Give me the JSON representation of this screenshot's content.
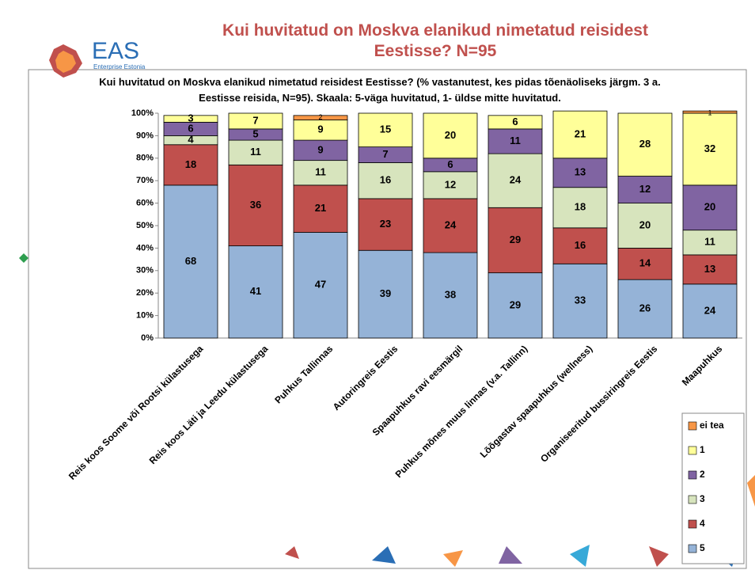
{
  "slide": {
    "title": "Kui huvitatud on Moskva elanikud nimetatud reisidest Eestisse? N=95",
    "logo": "EAS",
    "logo_sub": "Enterprise Estonia"
  },
  "chart_data": {
    "type": "stacked_bar",
    "title": "Kui huvitatud on Moskva elanikud nimetatud reisidest Eestisse? (% vastanutest, kes pidas tõenäoliseks järgm. 3 a. Eestisse reisida, N=95). Skaala: 5-väga huvitatud, 1- üldse mitte huvitatud.",
    "categories": [
      "Reis koos Soome või Rootsi külastusega",
      "Reis koos Läti ja Leedu külastusega",
      "Puhkus Tallinnas",
      "Autoringreis Eestis",
      "Spaapuhkus ravi eesmärgil",
      "Puhkus mõnes muus linnas (v.a. Tallinn)",
      "Lõõgastav spaapuhkus (wellness)",
      "Organiseeritud bussiringreis Eestis",
      "Maapuhkus"
    ],
    "series": [
      {
        "name": "5",
        "color": "#95b3d7",
        "values": [
          68,
          41,
          47,
          39,
          38,
          29,
          33,
          26,
          24
        ]
      },
      {
        "name": "4",
        "color": "#c0504d",
        "values": [
          18,
          36,
          21,
          23,
          24,
          29,
          16,
          14,
          13
        ]
      },
      {
        "name": "3",
        "color": "#d7e4bd",
        "values": [
          4,
          11,
          11,
          16,
          12,
          24,
          18,
          20,
          11
        ]
      },
      {
        "name": "2",
        "color": "#8064a2",
        "values": [
          6,
          5,
          9,
          7,
          6,
          11,
          13,
          12,
          20
        ]
      },
      {
        "name": "1",
        "color": "#ffff99",
        "values": [
          3,
          7,
          9,
          15,
          20,
          6,
          21,
          28,
          32
        ]
      },
      {
        "name": "ei tea",
        "color": "#f79646",
        "values": [
          null,
          null,
          2,
          null,
          null,
          null,
          null,
          null,
          1
        ]
      }
    ],
    "ylim": [
      0,
      100
    ],
    "yticks": [
      {
        "value": 0,
        "label": "0%"
      },
      {
        "value": 10,
        "label": "10%"
      },
      {
        "value": 20,
        "label": "20%"
      },
      {
        "value": 30,
        "label": "30%"
      },
      {
        "value": 40,
        "label": "40%"
      },
      {
        "value": 50,
        "label": "50%"
      },
      {
        "value": 60,
        "label": "60%"
      },
      {
        "value": 70,
        "label": "70%"
      },
      {
        "value": 80,
        "label": "80%"
      },
      {
        "value": 90,
        "label": "90%"
      },
      {
        "value": 100,
        "label": "100%"
      }
    ],
    "legend": "bottom-right"
  }
}
